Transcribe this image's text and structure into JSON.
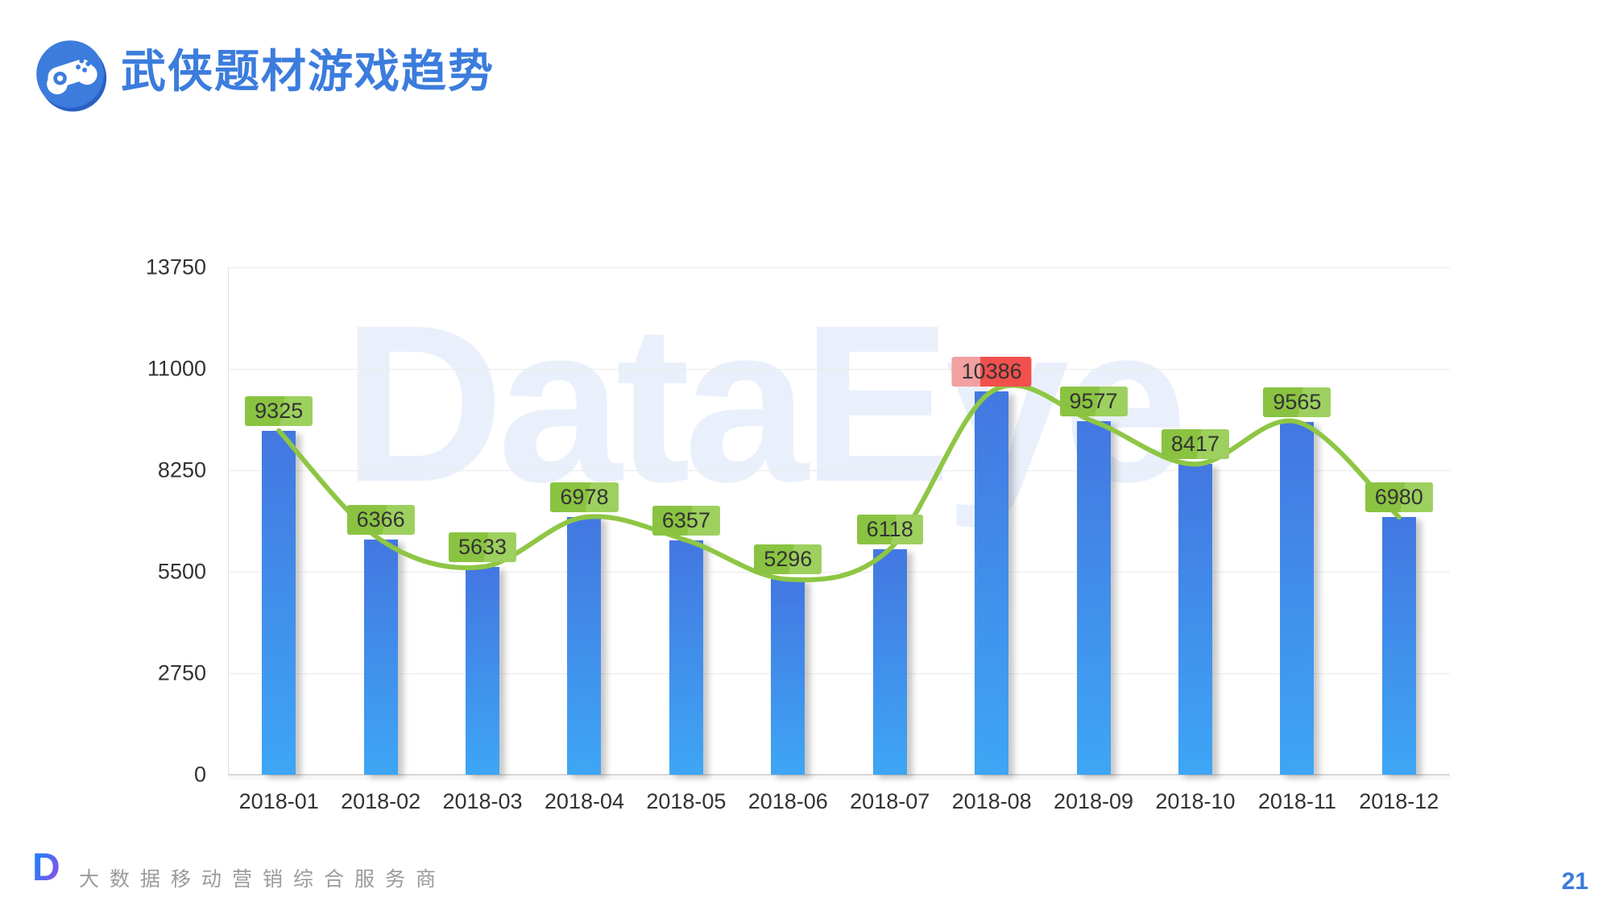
{
  "slide": {
    "title": "武侠题材游戏趋势",
    "watermark": "DataEye",
    "footer_logo_letter": "D",
    "footer_tagline": "大数据移动营销综合服务商",
    "page_number": "21"
  },
  "colors": {
    "title_blue": "#3b7cdd",
    "bar_top": "#4377e1",
    "bar_bottom": "#3ea6f5",
    "line_green": "#8ec644",
    "label_green": "#8ac341",
    "label_red": "#f1504d",
    "axis_text": "#333333",
    "gridline": "#ebebeb",
    "watermark_blue": "#e7effa",
    "footer_gray": "#9b9b9b"
  },
  "chart_data": {
    "type": "bar",
    "overlay_line": true,
    "title": "武侠题材游戏趋势",
    "categories": [
      "2018-01",
      "2018-02",
      "2018-03",
      "2018-04",
      "2018-05",
      "2018-06",
      "2018-07",
      "2018-08",
      "2018-09",
      "2018-10",
      "2018-11",
      "2018-12"
    ],
    "values": [
      9325,
      6366,
      5633,
      6978,
      6357,
      5296,
      6118,
      10386,
      9577,
      8417,
      9565,
      6980
    ],
    "y_ticks": [
      0,
      2750,
      5500,
      8250,
      11000,
      13750
    ],
    "ylim": [
      0,
      13750
    ],
    "xlabel": "",
    "ylabel": "",
    "grid": true,
    "legend": false,
    "highlight_max_index": 7,
    "data_label_style": "green boxes above bars; max value in red box"
  }
}
